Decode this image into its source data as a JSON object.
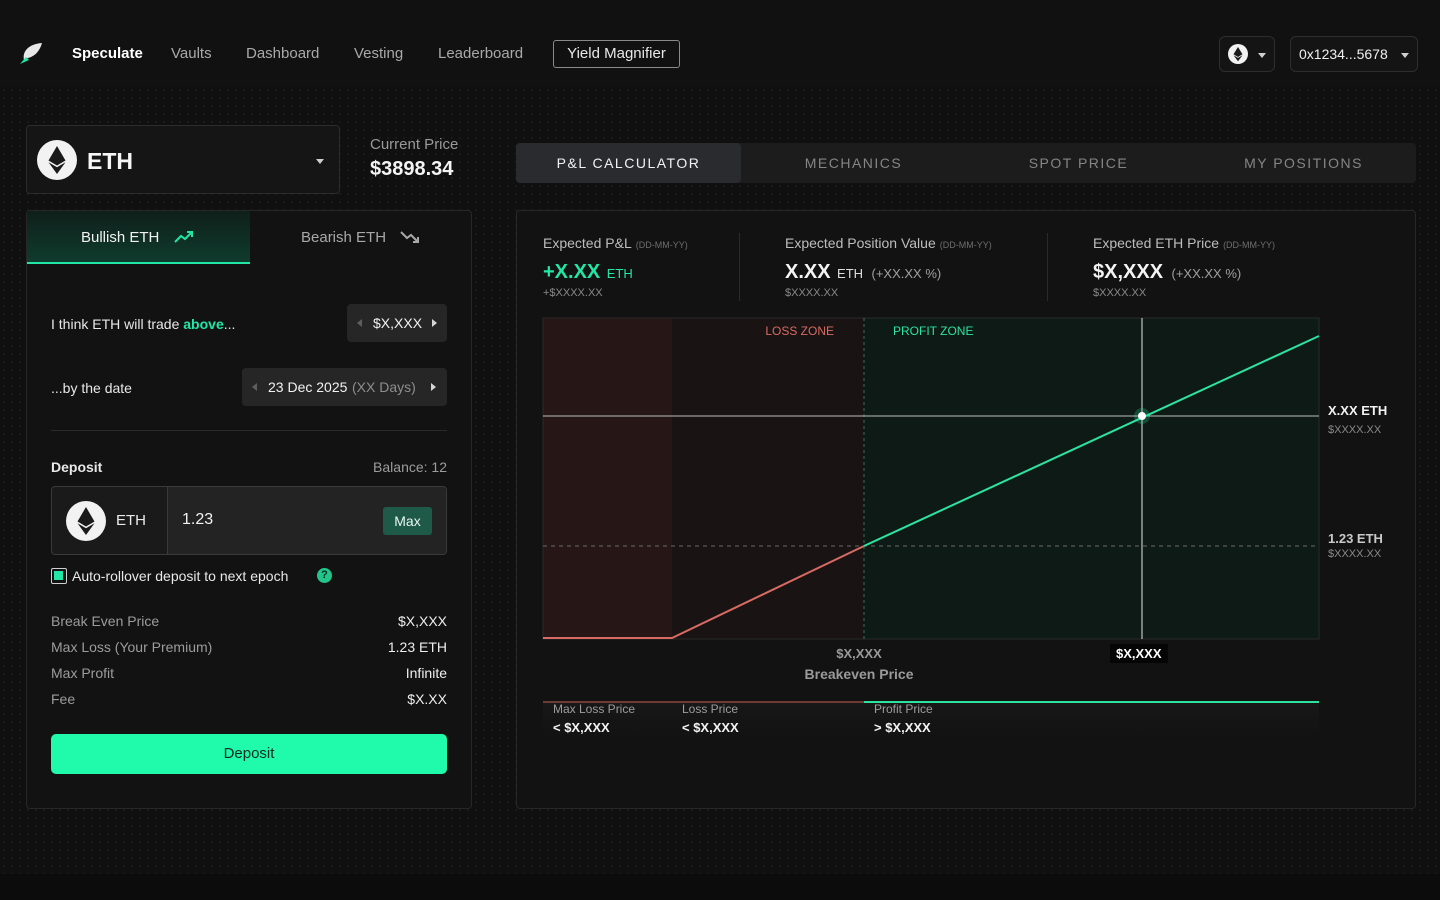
{
  "nav": {
    "items": [
      "Speculate",
      "Vaults",
      "Dashboard",
      "Vesting",
      "Leaderboard"
    ],
    "boxed_item": "Yield Magnifier",
    "wallet": "0x1234...5678"
  },
  "asset": {
    "symbol": "ETH",
    "current_price_label": "Current Price",
    "current_price": "$3898.34"
  },
  "direction": {
    "bullish": "Bullish ETH",
    "bearish": "Bearish ETH"
  },
  "form": {
    "trade_prefix": "I think ETH will trade ",
    "trade_keyword": "above",
    "trade_suffix": "...",
    "strike_value": "$X,XXX",
    "date_label": "...by the date",
    "date_value": "23 Dec 2025",
    "date_days": "(XX Days)",
    "deposit_label": "Deposit",
    "balance": "Balance: 12",
    "deposit_asset": "ETH",
    "deposit_amount": "1.23",
    "max_label": "Max",
    "auto_rollover": "Auto-rollover deposit to next epoch",
    "auto_rollover_checked": true,
    "summary": [
      {
        "label": "Break Even Price",
        "value": "$X,XXX"
      },
      {
        "label": "Max Loss (Your Premium)",
        "value": "1.23 ETH"
      },
      {
        "label": "Max Profit",
        "value": "Infinite"
      },
      {
        "label": "Fee",
        "value": "$X.XX"
      }
    ],
    "submit": "Deposit"
  },
  "tabs": [
    "P&L CALCULATOR",
    "MECHANICS",
    "SPOT PRICE",
    "MY POSITIONS"
  ],
  "stats": {
    "pnl": {
      "title": "Expected P&L",
      "date": "(DD-MM-YY)",
      "value": "+X.XX",
      "unit": "ETH",
      "sub": "+$XXXX.XX"
    },
    "position": {
      "title": "Expected Position Value",
      "date": "(DD-MM-YY)",
      "value": "X.XX",
      "unit": "ETH",
      "pct": "(+XX.XX %)",
      "sub": "$XXXX.XX"
    },
    "price": {
      "title": "Expected ETH Price",
      "date": "(DD-MM-YY)",
      "value": "$X,XXX",
      "pct": "(+XX.XX %)",
      "sub": "$XXXX.XX"
    }
  },
  "chart": {
    "loss_zone": "LOSS ZONE",
    "profit_zone": "PROFIT ZONE",
    "marker_eth": "X.XX ETH",
    "marker_usd": "$XXXX.XX",
    "deposit_eth": "1.23 ETH",
    "deposit_usd": "$XXXX.XX",
    "breakeven_tick": "$X,XXX",
    "breakeven_label": "Breakeven Price",
    "selected_tick": "$X,XXX",
    "colors": {
      "profit": "#2de3a0",
      "loss": "#d76b63"
    }
  },
  "zones": [
    {
      "label": "Max Loss Price",
      "value": "< $X,XXX"
    },
    {
      "label": "Loss Price",
      "value": "< $X,XXX"
    },
    {
      "label": "Profit Price",
      "value": "> $X,XXX"
    }
  ]
}
